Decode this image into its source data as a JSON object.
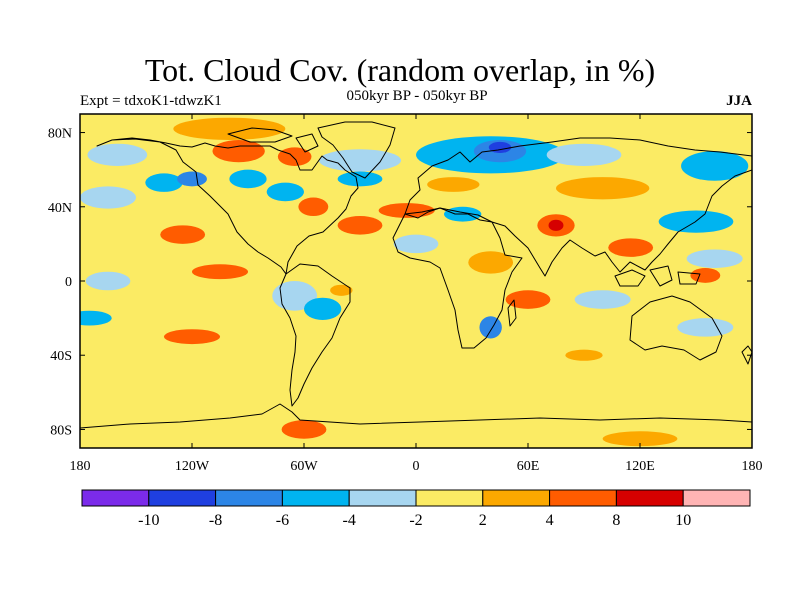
{
  "title": "Tot. Cloud Cov. (random overlap, in %)",
  "subtitle": "050kyr BP - 050kyr BP",
  "experiment_label": "Expt = tdxoK1-tdwzK1",
  "season": "JJA",
  "map": {
    "projection": "cylindrical-equidistant",
    "lon_range": [
      -180,
      180
    ],
    "lat_range": [
      -90,
      90
    ],
    "lon_ticks": [
      {
        "value": -180,
        "label": "180"
      },
      {
        "value": -120,
        "label": "120W"
      },
      {
        "value": -60,
        "label": "60W"
      },
      {
        "value": 0,
        "label": "0"
      },
      {
        "value": 60,
        "label": "60E"
      },
      {
        "value": 120,
        "label": "120E"
      },
      {
        "value": 180,
        "label": "180"
      }
    ],
    "lat_ticks": [
      {
        "value": 80,
        "label": "80N"
      },
      {
        "value": 40,
        "label": "40N"
      },
      {
        "value": 0,
        "label": "0"
      },
      {
        "value": -40,
        "label": "40S"
      },
      {
        "value": -80,
        "label": "80S"
      }
    ],
    "background_bin_color": "#fbeb64",
    "anomaly_patches": [
      {
        "lon": -100,
        "lat": 82,
        "rlon": 30,
        "rlat": 6,
        "color": "#fca800"
      },
      {
        "lon": -95,
        "lat": 70,
        "rlon": 14,
        "rlat": 6,
        "color": "#ff5c00"
      },
      {
        "lon": -65,
        "lat": 67,
        "rlon": 9,
        "rlat": 5,
        "color": "#ff5c00"
      },
      {
        "lon": -160,
        "lat": 68,
        "rlon": 16,
        "rlat": 6,
        "color": "#a7d6f0"
      },
      {
        "lon": -135,
        "lat": 53,
        "rlon": 10,
        "rlat": 5,
        "color": "#00b4f0"
      },
      {
        "lon": -120,
        "lat": 55,
        "rlon": 8,
        "rlat": 4,
        "color": "#2c85e6"
      },
      {
        "lon": -90,
        "lat": 55,
        "rlon": 10,
        "rlat": 5,
        "color": "#00b4f0"
      },
      {
        "lon": -70,
        "lat": 48,
        "rlon": 10,
        "rlat": 5,
        "color": "#00b4f0"
      },
      {
        "lon": -55,
        "lat": 40,
        "rlon": 8,
        "rlat": 5,
        "color": "#ff5c00"
      },
      {
        "lon": -30,
        "lat": 65,
        "rlon": 22,
        "rlat": 6,
        "color": "#a7d6f0"
      },
      {
        "lon": -30,
        "lat": 55,
        "rlon": 12,
        "rlat": 4,
        "color": "#00b4f0"
      },
      {
        "lon": 40,
        "lat": 68,
        "rlon": 40,
        "rlat": 10,
        "color": "#00b4f0"
      },
      {
        "lon": 45,
        "lat": 70,
        "rlon": 14,
        "rlat": 6,
        "color": "#2c85e6"
      },
      {
        "lon": 45,
        "lat": 72,
        "rlon": 6,
        "rlat": 3,
        "color": "#1f3fe0"
      },
      {
        "lon": 90,
        "lat": 68,
        "rlon": 20,
        "rlat": 6,
        "color": "#a7d6f0"
      },
      {
        "lon": 160,
        "lat": 62,
        "rlon": 18,
        "rlat": 8,
        "color": "#00b4f0"
      },
      {
        "lon": 100,
        "lat": 50,
        "rlon": 25,
        "rlat": 6,
        "color": "#fca800"
      },
      {
        "lon": 20,
        "lat": 52,
        "rlon": 14,
        "rlat": 4,
        "color": "#fca800"
      },
      {
        "lon": -5,
        "lat": 38,
        "rlon": 15,
        "rlat": 4,
        "color": "#ff5c00"
      },
      {
        "lon": 25,
        "lat": 36,
        "rlon": 10,
        "rlat": 4,
        "color": "#00b4f0"
      },
      {
        "lon": 75,
        "lat": 30,
        "rlon": 10,
        "rlat": 6,
        "color": "#ff5c00"
      },
      {
        "lon": 75,
        "lat": 30,
        "rlon": 4,
        "rlat": 3,
        "color": "#d60000"
      },
      {
        "lon": 115,
        "lat": 18,
        "rlon": 12,
        "rlat": 5,
        "color": "#ff5c00"
      },
      {
        "lon": 150,
        "lat": 32,
        "rlon": 20,
        "rlat": 6,
        "color": "#00b4f0"
      },
      {
        "lon": 160,
        "lat": 12,
        "rlon": 15,
        "rlat": 5,
        "color": "#a7d6f0"
      },
      {
        "lon": -165,
        "lat": 45,
        "rlon": 15,
        "rlat": 6,
        "color": "#a7d6f0"
      },
      {
        "lon": -125,
        "lat": 25,
        "rlon": 12,
        "rlat": 5,
        "color": "#ff5c00"
      },
      {
        "lon": -105,
        "lat": 5,
        "rlon": 15,
        "rlat": 4,
        "color": "#ff5c00"
      },
      {
        "lon": -165,
        "lat": 0,
        "rlon": 12,
        "rlat": 5,
        "color": "#a7d6f0"
      },
      {
        "lon": -65,
        "lat": -8,
        "rlon": 12,
        "rlat": 8,
        "color": "#a7d6f0"
      },
      {
        "lon": -50,
        "lat": -15,
        "rlon": 10,
        "rlat": 6,
        "color": "#00b4f0"
      },
      {
        "lon": -40,
        "lat": -5,
        "rlon": 6,
        "rlat": 3,
        "color": "#fca800"
      },
      {
        "lon": -30,
        "lat": 30,
        "rlon": 12,
        "rlat": 5,
        "color": "#ff5c00"
      },
      {
        "lon": 0,
        "lat": 20,
        "rlon": 12,
        "rlat": 5,
        "color": "#a7d6f0"
      },
      {
        "lon": 40,
        "lat": 10,
        "rlon": 12,
        "rlat": 6,
        "color": "#fca800"
      },
      {
        "lon": 60,
        "lat": -10,
        "rlon": 12,
        "rlat": 5,
        "color": "#ff5c00"
      },
      {
        "lon": 40,
        "lat": -25,
        "rlon": 6,
        "rlat": 6,
        "color": "#2c85e6"
      },
      {
        "lon": 100,
        "lat": -10,
        "rlon": 15,
        "rlat": 5,
        "color": "#a7d6f0"
      },
      {
        "lon": 155,
        "lat": -25,
        "rlon": 15,
        "rlat": 5,
        "color": "#a7d6f0"
      },
      {
        "lon": -120,
        "lat": -30,
        "rlon": 15,
        "rlat": 4,
        "color": "#ff5c00"
      },
      {
        "lon": -175,
        "lat": -20,
        "rlon": 12,
        "rlat": 4,
        "color": "#00b4f0"
      },
      {
        "lon": -60,
        "lat": -80,
        "rlon": 12,
        "rlat": 5,
        "color": "#ff5c00"
      },
      {
        "lon": 120,
        "lat": -85,
        "rlon": 20,
        "rlat": 4,
        "color": "#fca800"
      },
      {
        "lon": 90,
        "lat": -40,
        "rlon": 10,
        "rlat": 3,
        "color": "#fca800"
      },
      {
        "lon": 155,
        "lat": 3,
        "rlon": 8,
        "rlat": 4,
        "color": "#ff5c00"
      }
    ]
  },
  "colorbar": {
    "bins": [
      {
        "color": "#7b2bea"
      },
      {
        "color": "#1f3fe0"
      },
      {
        "color": "#2c85e6"
      },
      {
        "color": "#00b4f0"
      },
      {
        "color": "#a7d6f0"
      },
      {
        "color": "#fbeb64"
      },
      {
        "color": "#fca800"
      },
      {
        "color": "#ff5c00"
      },
      {
        "color": "#d60000"
      },
      {
        "color": "#ffb4b4"
      }
    ],
    "tick_labels": [
      "-10",
      "-8",
      "-6",
      "-4",
      "-2",
      "2",
      "4",
      "8",
      "10"
    ]
  }
}
